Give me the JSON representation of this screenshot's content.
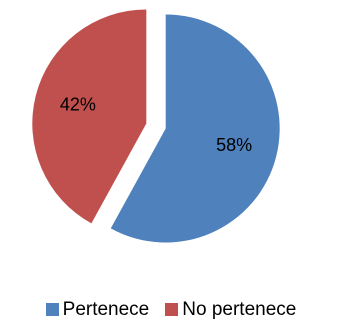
{
  "chart_data": {
    "type": "pie",
    "title": "",
    "categories": [
      "Pertenece",
      "No pertenece"
    ],
    "values": [
      58,
      42
    ],
    "value_labels": [
      "58%",
      "42%"
    ],
    "colors": [
      "#4f81bd",
      "#c0504d"
    ],
    "exploded": true,
    "start_angle": "12 o'clock, clockwise",
    "legend_position": "bottom"
  },
  "legend": {
    "items": [
      {
        "label": "Pertenece",
        "color": "#4f81bd"
      },
      {
        "label": "No pertenece",
        "color": "#c0504d"
      }
    ]
  }
}
